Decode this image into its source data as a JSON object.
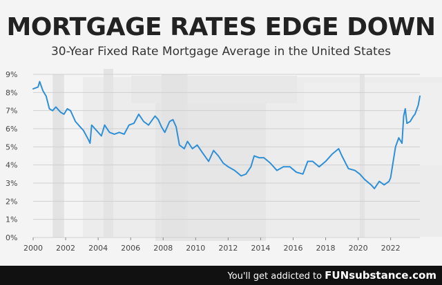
{
  "title": "MORTGAGE RATES EDGE DOWN",
  "subtitle": "30-Year Fixed Rate Mortgage Average in the United States",
  "footer": {
    "text": "You'll get addicted to ",
    "brand": "FUNsubstance.com"
  },
  "colors": {
    "line": "#2e8fd6",
    "recession_band": "#e3e3e3",
    "grid": "#cfcfcf",
    "text": "#222222",
    "footer_bg": "#111111"
  },
  "chart_data": {
    "type": "line",
    "title": "MORTGAGE RATES EDGE DOWN",
    "subtitle": "30-Year Fixed Rate Mortgage Average in the United States",
    "xlabel": "",
    "ylabel": "",
    "xlim": [
      2000,
      2023.8
    ],
    "ylim": [
      0,
      9
    ],
    "x_ticks": [
      "2000",
      "2002",
      "2004",
      "2006",
      "2008",
      "2010",
      "2012",
      "2014",
      "2016",
      "2018",
      "2020",
      "2022"
    ],
    "y_ticks": [
      "0%",
      "1%",
      "2%",
      "3%",
      "4%",
      "5%",
      "6%",
      "7%",
      "8%",
      "9%"
    ],
    "grid": "horizontal",
    "recession_bands": [
      [
        2001.2,
        2001.9
      ],
      [
        2007.9,
        2009.5
      ],
      [
        2020.1,
        2020.4
      ]
    ],
    "series": [
      {
        "values": [
          [
            2000.0,
            8.2
          ],
          [
            2000.3,
            8.3
          ],
          [
            2000.4,
            8.6
          ],
          [
            2000.6,
            8.1
          ],
          [
            2000.8,
            7.8
          ],
          [
            2001.0,
            7.1
          ],
          [
            2001.2,
            7.0
          ],
          [
            2001.4,
            7.2
          ],
          [
            2001.7,
            6.9
          ],
          [
            2001.9,
            6.8
          ],
          [
            2002.1,
            7.1
          ],
          [
            2002.3,
            7.0
          ],
          [
            2002.6,
            6.4
          ],
          [
            2002.9,
            6.1
          ],
          [
            2003.1,
            5.9
          ],
          [
            2003.4,
            5.4
          ],
          [
            2003.5,
            5.2
          ],
          [
            2003.6,
            6.2
          ],
          [
            2003.9,
            5.9
          ],
          [
            2004.2,
            5.6
          ],
          [
            2004.4,
            6.2
          ],
          [
            2004.7,
            5.8
          ],
          [
            2005.0,
            5.7
          ],
          [
            2005.3,
            5.8
          ],
          [
            2005.6,
            5.7
          ],
          [
            2005.9,
            6.2
          ],
          [
            2006.2,
            6.3
          ],
          [
            2006.5,
            6.8
          ],
          [
            2006.8,
            6.4
          ],
          [
            2007.1,
            6.2
          ],
          [
            2007.5,
            6.7
          ],
          [
            2007.7,
            6.5
          ],
          [
            2007.9,
            6.1
          ],
          [
            2008.1,
            5.8
          ],
          [
            2008.4,
            6.4
          ],
          [
            2008.6,
            6.5
          ],
          [
            2008.8,
            6.1
          ],
          [
            2009.0,
            5.1
          ],
          [
            2009.3,
            4.9
          ],
          [
            2009.5,
            5.3
          ],
          [
            2009.8,
            4.9
          ],
          [
            2010.1,
            5.1
          ],
          [
            2010.4,
            4.7
          ],
          [
            2010.8,
            4.2
          ],
          [
            2011.1,
            4.8
          ],
          [
            2011.4,
            4.5
          ],
          [
            2011.7,
            4.1
          ],
          [
            2012.0,
            3.9
          ],
          [
            2012.4,
            3.7
          ],
          [
            2012.8,
            3.4
          ],
          [
            2013.1,
            3.5
          ],
          [
            2013.4,
            3.9
          ],
          [
            2013.6,
            4.5
          ],
          [
            2013.9,
            4.4
          ],
          [
            2014.2,
            4.4
          ],
          [
            2014.6,
            4.1
          ],
          [
            2015.0,
            3.7
          ],
          [
            2015.4,
            3.9
          ],
          [
            2015.8,
            3.9
          ],
          [
            2016.2,
            3.6
          ],
          [
            2016.6,
            3.5
          ],
          [
            2016.9,
            4.2
          ],
          [
            2017.2,
            4.2
          ],
          [
            2017.6,
            3.9
          ],
          [
            2018.0,
            4.2
          ],
          [
            2018.4,
            4.6
          ],
          [
            2018.8,
            4.9
          ],
          [
            2019.0,
            4.5
          ],
          [
            2019.4,
            3.8
          ],
          [
            2019.8,
            3.7
          ],
          [
            2020.1,
            3.5
          ],
          [
            2020.4,
            3.2
          ],
          [
            2020.8,
            2.9
          ],
          [
            2021.0,
            2.7
          ],
          [
            2021.3,
            3.1
          ],
          [
            2021.6,
            2.9
          ],
          [
            2021.9,
            3.1
          ],
          [
            2022.0,
            3.3
          ],
          [
            2022.3,
            5.0
          ],
          [
            2022.5,
            5.5
          ],
          [
            2022.7,
            5.2
          ],
          [
            2022.8,
            6.7
          ],
          [
            2022.9,
            7.1
          ],
          [
            2023.0,
            6.3
          ],
          [
            2023.2,
            6.4
          ],
          [
            2023.4,
            6.7
          ],
          [
            2023.5,
            6.8
          ],
          [
            2023.7,
            7.3
          ],
          [
            2023.8,
            7.8
          ]
        ]
      }
    ]
  }
}
